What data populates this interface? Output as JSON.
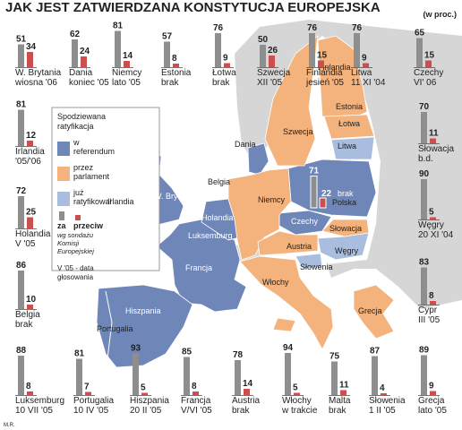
{
  "title": "JAK JEST ZATWIERDZANA KONSTYTUCJA EUROPEJSKA",
  "unit": "(w proc.)",
  "credit": "M.R.",
  "legend": {
    "title": [
      "Spodziewana",
      "ratyfikacja"
    ],
    "items": [
      {
        "lines": [
          "w",
          "referendum"
        ],
        "color": "#6f86b8"
      },
      {
        "lines": [
          "przez",
          "parlament"
        ],
        "color": "#f4b27c"
      },
      {
        "lines": [
          "już",
          "ratyfikował"
        ],
        "color": "#a9bddf"
      }
    ],
    "za": "za",
    "przeciw": "przeciw",
    "za_color": "#8e8e8e",
    "przeciw_color": "#c9504e",
    "source": [
      "wg sondażu",
      "Komisji",
      "Europejskiej"
    ],
    "date_note": [
      "V '05 - data",
      "głosowania"
    ]
  },
  "countries": [
    {
      "name": "W. Brytania",
      "za": 51,
      "przeciw": 34,
      "date": "wiosna '06"
    },
    {
      "name": "Dania",
      "za": 62,
      "przeciw": 24,
      "date": "koniec '05"
    },
    {
      "name": "Niemcy",
      "za": 81,
      "przeciw": 14,
      "date": "lato '05"
    },
    {
      "name": "Estonia",
      "za": 57,
      "przeciw": 8,
      "date": "brak"
    },
    {
      "name": "Łotwa",
      "za": 76,
      "przeciw": 9,
      "date": "brak"
    },
    {
      "name": "Szwecja",
      "za": 50,
      "przeciw": 26,
      "date": "XII '05"
    },
    {
      "name": "Finlandia",
      "za": 76,
      "przeciw": 15,
      "date": "jesień '05"
    },
    {
      "name": "Litwa",
      "za": 76,
      "przeciw": 9,
      "date": "11 XI '04"
    },
    {
      "name": "Czechy",
      "za": 65,
      "przeciw": 15,
      "date": "VI' 06"
    },
    {
      "name": "Irlandia",
      "za": 81,
      "przeciw": 12,
      "date": "'05/'06"
    },
    {
      "name": "Holandia",
      "za": 72,
      "przeciw": 25,
      "date": "V '05"
    },
    {
      "name": "Belgia",
      "za": 86,
      "przeciw": 10,
      "date": "brak"
    },
    {
      "name": "Słowacja",
      "za": 70,
      "przeciw": 11,
      "date": "b.d."
    },
    {
      "name": "Węgry",
      "za": 90,
      "przeciw": 5,
      "date": "20 XI '04"
    },
    {
      "name": "Cypr",
      "za": 83,
      "przeciw": 8,
      "date": "III '05"
    },
    {
      "name": "Luksemburg",
      "za": 88,
      "przeciw": 8,
      "date": "10 VII '05"
    },
    {
      "name": "Portugalia",
      "za": 81,
      "przeciw": 7,
      "date": "10 IV '05"
    },
    {
      "name": "Hiszpania",
      "za": 93,
      "przeciw": 5,
      "date": "20 II '05"
    },
    {
      "name": "Francja",
      "za": 85,
      "przeciw": 8,
      "date": "V/VI '05"
    },
    {
      "name": "Austria",
      "za": 78,
      "przeciw": 14,
      "date": "brak"
    },
    {
      "name": "Włochy",
      "za": 94,
      "przeciw": 5,
      "date": "w trakcie"
    },
    {
      "name": "Malta",
      "za": 75,
      "przeciw": 11,
      "date": "brak"
    },
    {
      "name": "Słowenia",
      "za": 87,
      "przeciw": 4,
      "date": "1 II '05"
    },
    {
      "name": "Grecja",
      "za": 89,
      "przeciw": 9,
      "date": "lato '05"
    },
    {
      "name": "Polska",
      "za": 71,
      "przeciw": 22,
      "date": "brak"
    }
  ],
  "map_labels": [
    "Irlandia",
    "W. Brytania",
    "Dania",
    "Belgia",
    "Holandia",
    "Luksemburg",
    "Francja",
    "Niemcy",
    "Szwecja",
    "Finlandia",
    "Estonia",
    "Łotwa",
    "Litwa",
    "Czechy",
    "Słowacja",
    "Austria",
    "Węgry",
    "Słowenia",
    "Włochy",
    "Hiszpania",
    "Portugalia",
    "Grecja"
  ]
}
